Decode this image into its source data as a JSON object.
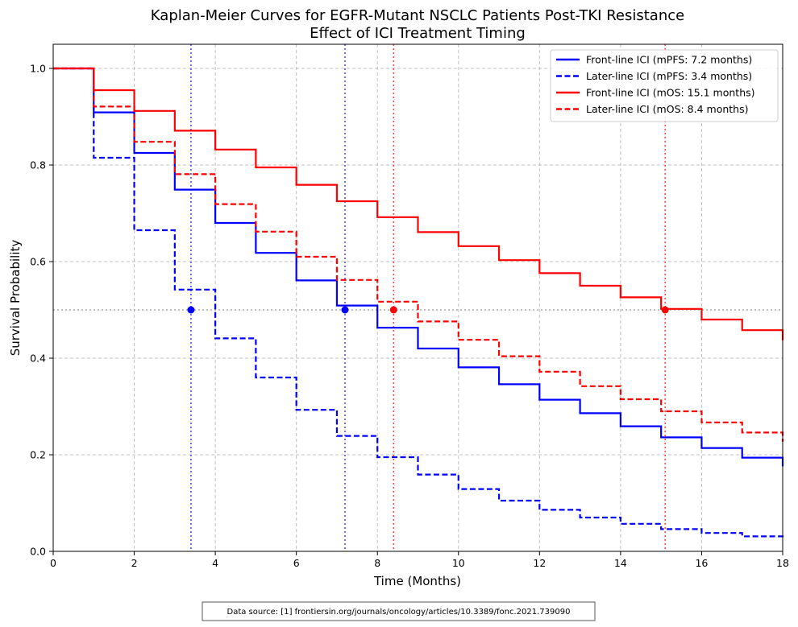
{
  "chart_data": {
    "type": "line",
    "title": "Kaplan-Meier Curves for EGFR-Mutant NSCLC Patients Post-TKI Resistance",
    "subtitle": "Effect of ICI Treatment Timing",
    "xlabel": "Time (Months)",
    "ylabel": "Survival Probability",
    "xlim": [
      0,
      18
    ],
    "ylim": [
      0,
      1.05
    ],
    "xticks": [
      0,
      2,
      4,
      6,
      8,
      10,
      12,
      14,
      16,
      18
    ],
    "yticks": [
      0.0,
      0.2,
      0.4,
      0.6,
      0.8,
      1.0
    ],
    "xtick_labels": [
      "0",
      "2",
      "4",
      "6",
      "8",
      "10",
      "12",
      "14",
      "16",
      "18"
    ],
    "ytick_labels": [
      "0.0",
      "0.2",
      "0.4",
      "0.6",
      "0.8",
      "1.0"
    ],
    "grid": true,
    "legend_position": "top-right",
    "x": [
      0,
      1,
      2,
      3,
      4,
      5,
      6,
      7,
      8,
      9,
      10,
      11,
      12,
      13,
      14,
      15,
      16,
      17,
      18
    ],
    "series": [
      {
        "name": "Front-line ICI (mPFS: 7.2 months)",
        "color": "#0000ff",
        "style": "solid",
        "values": [
          1.0,
          0.909,
          0.825,
          0.749,
          0.68,
          0.618,
          0.561,
          0.509,
          0.463,
          0.42,
          0.381,
          0.346,
          0.314,
          0.286,
          0.259,
          0.236,
          0.214,
          0.194,
          0.176
        ]
      },
      {
        "name": "Later-line ICI (mPFS: 3.4 months)",
        "color": "#0000ff",
        "style": "dashed",
        "values": [
          1.0,
          0.815,
          0.665,
          0.542,
          0.441,
          0.36,
          0.293,
          0.239,
          0.195,
          0.159,
          0.129,
          0.105,
          0.086,
          0.07,
          0.057,
          0.046,
          0.038,
          0.031,
          0.025
        ]
      },
      {
        "name": "Front-line ICI (mOS: 15.1 months)",
        "color": "#ff0000",
        "style": "solid",
        "values": [
          1.0,
          0.955,
          0.912,
          0.871,
          0.832,
          0.795,
          0.759,
          0.725,
          0.692,
          0.661,
          0.632,
          0.603,
          0.576,
          0.55,
          0.526,
          0.502,
          0.48,
          0.458,
          0.437
        ]
      },
      {
        "name": "Later-line ICI (mOS: 8.4 months)",
        "color": "#ff0000",
        "style": "dashed",
        "values": [
          1.0,
          0.921,
          0.848,
          0.781,
          0.719,
          0.662,
          0.61,
          0.562,
          0.517,
          0.476,
          0.438,
          0.404,
          0.372,
          0.342,
          0.315,
          0.29,
          0.267,
          0.246,
          0.227
        ]
      }
    ],
    "median_line_y": 0.5,
    "median_markers": [
      {
        "x": 3.4,
        "color": "#0000ff"
      },
      {
        "x": 7.2,
        "color": "#0000ff"
      },
      {
        "x": 8.4,
        "color": "#ff0000"
      },
      {
        "x": 15.1,
        "color": "#ff0000"
      }
    ],
    "source_note": "Data source: [1] frontiersin.org/journals/oncology/articles/10.3389/fonc.2021.739090"
  }
}
